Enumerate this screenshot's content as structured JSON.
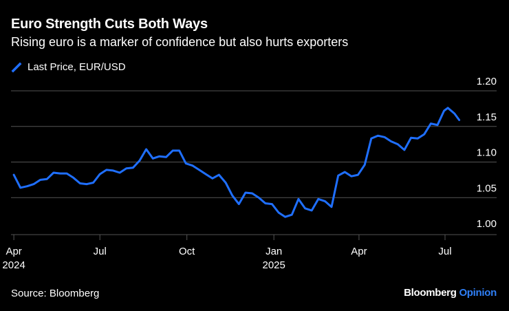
{
  "title": "Euro Strength Cuts Both Ways",
  "subtitle": "Rising euro is a marker of confidence but also hurts exporters",
  "legend": {
    "label": "Last Price, EUR/USD",
    "color": "#1f6fff",
    "icon": "line-swatch-icon"
  },
  "source": "Source: Bloomberg",
  "brand": {
    "name": "Bloomberg",
    "suffix": "Opinion"
  },
  "colors": {
    "background": "#000000",
    "line": "#1f6fff",
    "grid": "#555555",
    "text": "#ffffff",
    "accent": "#2f7ff6"
  },
  "chart_data": {
    "type": "line",
    "title": "Euro Strength Cuts Both Ways",
    "ylim": [
      1.0,
      1.2
    ],
    "yticks": [
      1.0,
      1.05,
      1.1,
      1.15,
      1.2
    ],
    "ytick_labels": [
      "1.00",
      "1.05",
      "1.10",
      "1.15",
      "1.20"
    ],
    "xlim": [
      "2024-03-29",
      "2025-07-25"
    ],
    "xticks": [
      {
        "date": "2024-04-01",
        "label": "Apr",
        "sublabel": "2024"
      },
      {
        "date": "2024-07-01",
        "label": "Jul",
        "sublabel": ""
      },
      {
        "date": "2024-10-01",
        "label": "Oct",
        "sublabel": ""
      },
      {
        "date": "2025-01-01",
        "label": "Jan",
        "sublabel": "2025"
      },
      {
        "date": "2025-04-01",
        "label": "Apr",
        "sublabel": ""
      },
      {
        "date": "2025-07-01",
        "label": "Jul",
        "sublabel": ""
      }
    ],
    "grid": true,
    "legend_position": "top-left",
    "series": [
      {
        "name": "Last Price, EUR/USD",
        "color": "#1f6fff",
        "points": [
          [
            "2024-04-01",
            1.082
          ],
          [
            "2024-04-08",
            1.064
          ],
          [
            "2024-04-15",
            1.066
          ],
          [
            "2024-04-22",
            1.069
          ],
          [
            "2024-04-29",
            1.075
          ],
          [
            "2024-05-06",
            1.076
          ],
          [
            "2024-05-13",
            1.085
          ],
          [
            "2024-05-20",
            1.084
          ],
          [
            "2024-05-27",
            1.084
          ],
          [
            "2024-06-03",
            1.078
          ],
          [
            "2024-06-10",
            1.07
          ],
          [
            "2024-06-17",
            1.069
          ],
          [
            "2024-06-24",
            1.071
          ],
          [
            "2024-07-01",
            1.083
          ],
          [
            "2024-07-08",
            1.089
          ],
          [
            "2024-07-15",
            1.088
          ],
          [
            "2024-07-22",
            1.085
          ],
          [
            "2024-07-29",
            1.091
          ],
          [
            "2024-08-05",
            1.092
          ],
          [
            "2024-08-12",
            1.102
          ],
          [
            "2024-08-19",
            1.118
          ],
          [
            "2024-08-26",
            1.105
          ],
          [
            "2024-09-02",
            1.108
          ],
          [
            "2024-09-09",
            1.107
          ],
          [
            "2024-09-16",
            1.116
          ],
          [
            "2024-09-23",
            1.116
          ],
          [
            "2024-09-30",
            1.098
          ],
          [
            "2024-10-07",
            1.095
          ],
          [
            "2024-10-14",
            1.089
          ],
          [
            "2024-10-21",
            1.083
          ],
          [
            "2024-10-28",
            1.077
          ],
          [
            "2024-11-04",
            1.082
          ],
          [
            "2024-11-11",
            1.071
          ],
          [
            "2024-11-18",
            1.053
          ],
          [
            "2024-11-25",
            1.041
          ],
          [
            "2024-12-02",
            1.057
          ],
          [
            "2024-12-09",
            1.056
          ],
          [
            "2024-12-16",
            1.05
          ],
          [
            "2024-12-23",
            1.042
          ],
          [
            "2024-12-30",
            1.041
          ],
          [
            "2025-01-06",
            1.029
          ],
          [
            "2025-01-13",
            1.023
          ],
          [
            "2025-01-20",
            1.026
          ],
          [
            "2025-01-27",
            1.048
          ],
          [
            "2025-02-03",
            1.035
          ],
          [
            "2025-02-10",
            1.032
          ],
          [
            "2025-02-17",
            1.048
          ],
          [
            "2025-02-24",
            1.045
          ],
          [
            "2025-03-03",
            1.037
          ],
          [
            "2025-03-10",
            1.081
          ],
          [
            "2025-03-17",
            1.086
          ],
          [
            "2025-03-24",
            1.08
          ],
          [
            "2025-03-31",
            1.082
          ],
          [
            "2025-04-07",
            1.096
          ],
          [
            "2025-04-14",
            1.133
          ],
          [
            "2025-04-21",
            1.137
          ],
          [
            "2025-04-28",
            1.135
          ],
          [
            "2025-05-05",
            1.129
          ],
          [
            "2025-05-12",
            1.125
          ],
          [
            "2025-05-19",
            1.117
          ],
          [
            "2025-05-26",
            1.134
          ],
          [
            "2025-06-02",
            1.133
          ],
          [
            "2025-06-09",
            1.139
          ],
          [
            "2025-06-16",
            1.154
          ],
          [
            "2025-06-23",
            1.152
          ],
          [
            "2025-06-30",
            1.172
          ],
          [
            "2025-07-04",
            1.176
          ],
          [
            "2025-07-11",
            1.168
          ],
          [
            "2025-07-16",
            1.159
          ]
        ]
      }
    ]
  }
}
